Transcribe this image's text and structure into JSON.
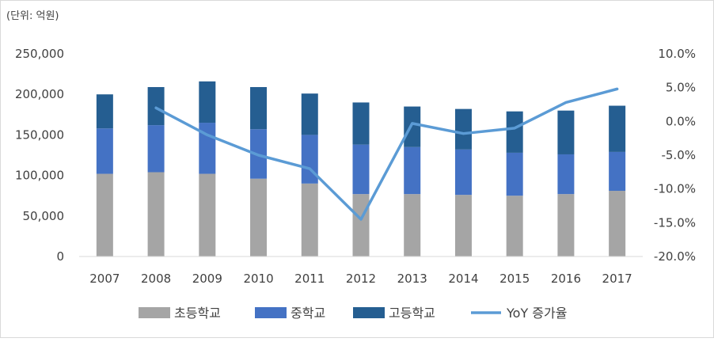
{
  "chart_data": {
    "type": "bar",
    "stacked": true,
    "unit_label": "(단위: 억원)",
    "categories": [
      "2007",
      "2008",
      "2009",
      "2010",
      "2011",
      "2012",
      "2013",
      "2014",
      "2015",
      "2016",
      "2017"
    ],
    "series": [
      {
        "name": "초등학교",
        "type": "bar",
        "axis": "left",
        "color": "#a5a5a5",
        "values": [
          102000,
          104000,
          102000,
          96000,
          90000,
          77000,
          77000,
          76000,
          75000,
          77000,
          81000
        ]
      },
      {
        "name": "중학교",
        "type": "bar",
        "axis": "left",
        "color": "#4472c4",
        "values": [
          56000,
          58000,
          63000,
          61000,
          60000,
          61000,
          58000,
          56000,
          53000,
          49000,
          48000
        ]
      },
      {
        "name": "고등학교",
        "type": "bar",
        "axis": "left",
        "color": "#255e91",
        "values": [
          42000,
          47000,
          51000,
          52000,
          51000,
          52000,
          50000,
          50000,
          51000,
          54000,
          57000
        ]
      },
      {
        "name": "YoY 증가율",
        "type": "line",
        "axis": "right",
        "color": "#5b9bd5",
        "values": [
          null,
          2.0,
          -2.0,
          -5.0,
          -7.0,
          -14.5,
          -0.3,
          -1.8,
          -1.0,
          2.8,
          4.8
        ]
      }
    ],
    "y_left": {
      "min": 0,
      "max": 250000,
      "step": 50000,
      "ticks": [
        "0",
        "50,000",
        "100,000",
        "150,000",
        "200,000",
        "250,000"
      ]
    },
    "y_right": {
      "min": -20,
      "max": 10,
      "step": 5,
      "ticks": [
        "-20.0%",
        "-15.0%",
        "-10.0%",
        "-5.0%",
        "0.0%",
        "5.0%",
        "10.0%"
      ]
    },
    "grid": false,
    "legend_position": "bottom"
  }
}
